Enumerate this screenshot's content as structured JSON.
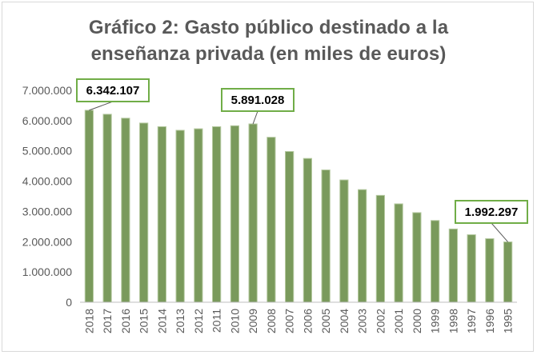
{
  "chart_data": {
    "type": "bar",
    "title_lines": [
      "Gráfico 2: Gasto público destinado a la",
      "enseñanza privada (en miles de euros)"
    ],
    "xlabel": "",
    "ylabel": "",
    "categories": [
      "2018",
      "2017",
      "2016",
      "2015",
      "2014",
      "2013",
      "2012",
      "2011",
      "2010",
      "2009",
      "2008",
      "2007",
      "2006",
      "2005",
      "2004",
      "2003",
      "2002",
      "2001",
      "2000",
      "1999",
      "1998",
      "1997",
      "1996",
      "1995"
    ],
    "values": [
      6342107,
      6210000,
      6080000,
      5920000,
      5800000,
      5680000,
      5730000,
      5800000,
      5830000,
      5891028,
      5450000,
      4980000,
      4750000,
      4370000,
      4040000,
      3720000,
      3530000,
      3250000,
      2960000,
      2700000,
      2420000,
      2230000,
      2100000,
      1992297
    ],
    "ylim": [
      0,
      7000000
    ],
    "yticks": [
      0,
      1000000,
      2000000,
      3000000,
      4000000,
      5000000,
      6000000,
      7000000
    ],
    "ytick_labels": [
      "0",
      "1.000.000",
      "2.000.000",
      "3.000.000",
      "4.000.000",
      "5.000.000",
      "6.000.000",
      "7.000.000"
    ],
    "grid": false,
    "bar_color": "#7a9a5c",
    "bar_edge_color": "#b5c9a0",
    "axis_color": "#bfbfbf",
    "title_color": "#595959",
    "callout_border_color": "#70ad47",
    "annotations": [
      {
        "category": "2018",
        "label": "6.342.107"
      },
      {
        "category": "2009",
        "label": "5.891.028"
      },
      {
        "category": "1995",
        "label": "1.992.297"
      }
    ]
  }
}
